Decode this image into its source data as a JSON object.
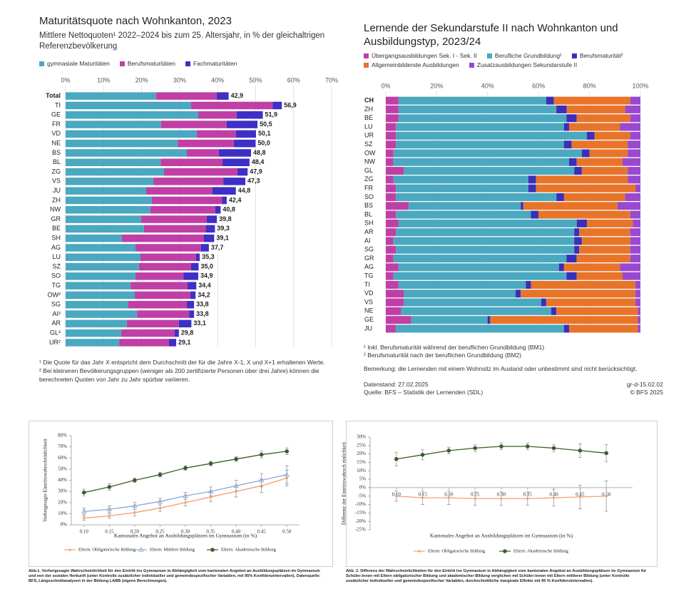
{
  "chart_data": [
    {
      "type": "bar",
      "orientation": "horizontal",
      "stacked": true,
      "title": "Maturitätsquote nach Wohnkanton, 2023",
      "subtitle": "Mittlere Nettoquoten¹ 2022–2024 bis zum 25. Altersjahr, in % der gleichaltrigen Referenzbevölkerung",
      "categories": [
        "Total",
        "TI",
        "GE",
        "FR",
        "VD",
        "NE",
        "BS",
        "BL",
        "ZG",
        "VS",
        "JU",
        "ZH",
        "NW",
        "GR",
        "BE",
        "SH",
        "AG",
        "LU",
        "SZ",
        "SO",
        "TG",
        "OW²",
        "SG",
        "AI²",
        "AR",
        "GL²",
        "UR²"
      ],
      "series": [
        {
          "name": "gymnasiale Maturitäten",
          "color": "#4aa8c0",
          "values": [
            23.8,
            33.0,
            34.9,
            25.1,
            34.5,
            29.5,
            31.9,
            25.0,
            25.9,
            23.1,
            21.2,
            22.7,
            22.3,
            19.9,
            20.6,
            14.8,
            18.4,
            19.7,
            19.3,
            18.4,
            17.1,
            18.2,
            16.5,
            18.8,
            16.1,
            14.6,
            14.1
          ]
        },
        {
          "name": "Berufsmaturitäten",
          "color": "#c03fa6",
          "values": [
            16.0,
            21.5,
            10.1,
            17.3,
            10.3,
            14.8,
            8.4,
            16.3,
            19.3,
            18.4,
            17.4,
            18.5,
            17.1,
            17.2,
            16.3,
            21.6,
            17.2,
            14.6,
            13.7,
            12.6,
            15.0,
            14.6,
            15.4,
            13.7,
            13.7,
            14.1,
            13.1
          ]
        },
        {
          "name": "Fachmaturitäten",
          "color": "#3e2fc6",
          "values": [
            3.1,
            2.4,
            6.9,
            8.1,
            5.3,
            5.7,
            8.5,
            7.1,
            2.7,
            5.8,
            6.2,
            1.2,
            1.4,
            2.7,
            2.4,
            2.7,
            2.1,
            1.0,
            2.0,
            3.9,
            2.3,
            1.4,
            1.9,
            1.3,
            3.3,
            1.1,
            1.9
          ]
        }
      ],
      "totals": [
        42.9,
        56.9,
        51.9,
        50.5,
        50.1,
        50.0,
        48.8,
        48.4,
        47.9,
        47.3,
        44.8,
        42.4,
        40.8,
        39.8,
        39.3,
        39.1,
        37.7,
        35.3,
        35.0,
        34.9,
        34.4,
        34.2,
        33.8,
        33.8,
        33.1,
        29.8,
        29.1
      ],
      "total_labels": [
        "42,9",
        "56,9",
        "51,9",
        "50,5",
        "50,1",
        "50,0",
        "48,8",
        "48,4",
        "47,9",
        "47,3",
        "44,8",
        "42,4",
        "40,8",
        "39,8",
        "39,3",
        "39,1",
        "37,7",
        "35,3",
        "35,0",
        "34,9",
        "34,4",
        "34,2",
        "33,8",
        "33,8",
        "33,1",
        "29,8",
        "29,1"
      ],
      "xlim": [
        0,
        70
      ],
      "xticks": [
        {
          "value": 0,
          "label": "0%"
        },
        {
          "value": 10,
          "label": "10%"
        },
        {
          "value": 20,
          "label": "20%"
        },
        {
          "value": 30,
          "label": "30%"
        },
        {
          "value": 40,
          "label": "40%"
        },
        {
          "value": 50,
          "label": "50%"
        },
        {
          "value": 60,
          "label": "60%"
        },
        {
          "value": 70,
          "label": "70%"
        }
      ],
      "grid": true,
      "notes": [
        "¹ Die Quote für das Jahr X entspricht dem Durchschnitt der für die Jahre X-1, X und X+1 erhaltenen Werte.",
        "² Bei kleineren Bevölkerungsgruppen (weniger als 200 zertifizierte Personen über drei Jahre) können die berechneten Quoten von Jahr zu Jahr spürbar variieren."
      ]
    },
    {
      "type": "bar",
      "orientation": "horizontal",
      "stacked": true,
      "title": "Lernende der Sekundarstufe II nach Wohnkanton und Ausbildungstyp, 2023/24",
      "categories": [
        "CH",
        "ZH",
        "BE",
        "LU",
        "UR",
        "SZ",
        "OW",
        "NW",
        "GL",
        "ZG",
        "FR",
        "SO",
        "BS",
        "BL",
        "SH",
        "AR",
        "AI",
        "SG",
        "GR",
        "AG",
        "TG",
        "TI",
        "VD",
        "VS",
        "NE",
        "GE",
        "JU"
      ],
      "series": [
        {
          "name": "Übergangsausbildungen Sek. I - Sek. II",
          "color": "#c03fa6",
          "values": [
            5,
            5,
            5,
            4,
            4,
            4,
            3,
            3,
            7,
            3,
            4,
            4,
            9,
            4,
            5,
            4,
            3,
            4,
            3,
            5,
            3,
            5,
            7,
            7,
            6,
            10,
            4
          ]
        },
        {
          "name": "Berufliche Grundbildung¹",
          "color": "#4aa8c0",
          "values": [
            58,
            62,
            66,
            66,
            75,
            66,
            74,
            69,
            67,
            53,
            52,
            63,
            44,
            53,
            70,
            70,
            71,
            70,
            68,
            63,
            68,
            50,
            44,
            54,
            59,
            30,
            66
          ]
        },
        {
          "name": "Berufsmaturität²",
          "color": "#3a2fb8",
          "values": [
            3,
            4,
            4,
            2,
            3,
            3,
            3,
            3,
            3,
            3,
            3,
            3,
            1,
            3,
            4,
            2,
            3,
            2,
            4,
            2,
            4,
            2,
            2,
            2,
            2,
            1,
            2
          ]
        },
        {
          "name": "Allgemeinbildende Ausbildungen",
          "color": "#e8742a",
          "values": [
            30,
            23,
            21,
            20,
            14,
            22,
            15,
            18,
            18,
            36,
            39,
            24,
            37,
            36,
            18,
            20,
            19,
            20,
            21,
            22,
            18,
            41,
            45,
            35,
            32,
            58,
            27
          ]
        },
        {
          "name": "Zusatzausbildungen Sekundarstufe II",
          "color": "#9a48d0",
          "values": [
            4,
            6,
            4,
            8,
            4,
            5,
            5,
            7,
            5,
            5,
            2,
            6,
            9,
            4,
            3,
            4,
            4,
            4,
            4,
            8,
            7,
            2,
            2,
            2,
            1,
            1,
            1
          ]
        }
      ],
      "xlim": [
        0,
        100
      ],
      "xticks": [
        {
          "value": 0,
          "label": "0%"
        },
        {
          "value": 20,
          "label": "20%"
        },
        {
          "value": 40,
          "label": "40%"
        },
        {
          "value": 60,
          "label": "60%"
        },
        {
          "value": 80,
          "label": "80%"
        },
        {
          "value": 100,
          "label": "100%"
        }
      ],
      "grid": true,
      "notes": [
        "¹ Inkl. Berufsmaturität während der beruflichen Grundbildung (BM1)",
        "² Berufsmaturität nach der beruflichen Grundbildung (BM2)",
        "Bemerkung: die Lernenden mit einem Wohnsitz im Ausland oder unbestimmt sind nicht berücksichtigt."
      ],
      "stand": "Datenstand: 27.02.2025",
      "code": "gr-d-15.02.02",
      "source": "Quelle: BFS – Statistik der Lernenden (SDL)",
      "copyright": "© BFS 2025"
    },
    {
      "type": "line",
      "x_label": "Kantonales Angebot an Ausbildungsplätzen im Gymnasium (in %)",
      "y_label": "Vorhergesagte Eintrittswahrscheinlichkeit",
      "x": [
        0.1,
        0.15,
        0.2,
        0.25,
        0.3,
        0.35,
        0.4,
        0.45,
        0.5
      ],
      "series": [
        {
          "name": "Eltern: Obligatorische Bildung",
          "color": "#f0a070",
          "marker": "dot",
          "values": [
            6,
            8,
            11,
            15,
            20,
            25,
            30,
            35,
            42
          ],
          "errors": [
            2,
            2,
            3,
            3,
            3,
            4,
            5,
            6,
            7
          ]
        },
        {
          "name": "Eltern: Mittlere Bildung",
          "color": "#8fa8d8",
          "marker": "triangle",
          "values": [
            12,
            14,
            17,
            21,
            26,
            30,
            35,
            40,
            45
          ],
          "errors": [
            3,
            3,
            3,
            3,
            3,
            4,
            5,
            6,
            8
          ]
        },
        {
          "name": "Eltern: Akademische Bildung",
          "color": "#3b5e2b",
          "marker": "circle",
          "values": [
            29,
            34,
            40,
            45,
            51,
            55,
            59,
            63,
            66
          ],
          "errors": [
            3,
            3,
            2,
            2,
            2,
            2,
            2,
            3,
            3
          ]
        }
      ],
      "xlim": [
        0.075,
        0.525
      ],
      "xticks": [
        {
          "value": 0.1,
          "label": "0.10"
        },
        0.15,
        {
          "value": 0.2,
          "label": "0.20"
        },
        0.25,
        {
          "value": 0.3,
          "label": "0.30"
        },
        0.35,
        {
          "value": 0.4,
          "label": "0.40"
        },
        0.45,
        {
          "value": 0.5,
          "label": "0.50"
        }
      ],
      "ylim": [
        0,
        80
      ],
      "yticks": [
        {
          "value": 0,
          "label": "0%"
        },
        {
          "value": 10,
          "label": "10%"
        },
        {
          "value": 20,
          "label": "20%"
        },
        {
          "value": 30,
          "label": "30%"
        },
        {
          "value": 40,
          "label": "40%"
        },
        {
          "value": 50,
          "label": "50%"
        },
        {
          "value": 60,
          "label": "60%"
        },
        {
          "value": 70,
          "label": "70%"
        },
        {
          "value": 80,
          "label": "80%"
        }
      ],
      "grid": false,
      "caption": "Abb.1. Vorhergesagte Wahrscheinlichkeit für den Eintritt ins Gymnasium in Abhängigkeit vom kantonalen Angebot an Ausbildungsplätzen im Gymnasium und von der sozialen Herkunft (unter Kontrolle zusätzlicher individueller und gemeindespezifischer Variablen, mit 95% Konfidenzintervallen). Datenquelle: BFS, Längsschnittanalysen in der Bildung LABB (eigene Berechnungen)."
    },
    {
      "type": "line",
      "x_label": "Kantonales Angebot an Ausbildungsplätzen im Gymnasium (in %)",
      "y_label": "Differenz der Eintrittswahrsch einlichkeit",
      "x": [
        0.1,
        0.15,
        0.2,
        0.25,
        0.3,
        0.35,
        0.4,
        0.45,
        0.5
      ],
      "series": [
        {
          "name": "Eltern: Obligatorische Bildung",
          "color": "#f0a070",
          "marker": "dot",
          "values": [
            -5,
            -6,
            -6,
            -6.5,
            -6.5,
            -6.5,
            -6,
            -5.5,
            -5
          ],
          "errors": [
            3,
            4,
            4,
            4,
            4,
            4,
            5,
            7,
            9
          ]
        },
        {
          "name": "Eltern: Akademische Bildung",
          "color": "#3b5e2b",
          "marker": "circle",
          "values": [
            17,
            19.5,
            22,
            23.5,
            24.5,
            24.5,
            23.5,
            22,
            20.5
          ],
          "errors": [
            4,
            3,
            2,
            2,
            2,
            2,
            2,
            4,
            5
          ]
        }
      ],
      "xlim": [
        0.05,
        0.55
      ],
      "xticks": [
        {
          "value": 0.1,
          "label": "0.10"
        },
        0.15,
        {
          "value": 0.2,
          "label": "0.20"
        },
        0.25,
        {
          "value": 0.3,
          "label": "0.30"
        },
        0.35,
        {
          "value": 0.4,
          "label": "0.40"
        },
        0.45,
        {
          "value": 0.5,
          "label": "0.50"
        }
      ],
      "ylim": [
        -25,
        30
      ],
      "yticks": [
        {
          "value": -25,
          "label": "-25%"
        },
        {
          "value": -20,
          "label": "-20%"
        },
        {
          "value": -15,
          "label": "-15%"
        },
        {
          "value": -10,
          "label": "-10%"
        },
        {
          "value": -5,
          "label": "-5%"
        },
        {
          "value": 0,
          "label": "0%"
        },
        {
          "value": 5,
          "label": "5%"
        },
        {
          "value": 10,
          "label": "10%"
        },
        {
          "value": 15,
          "label": "15%"
        },
        {
          "value": 20,
          "label": "20%"
        },
        {
          "value": 25,
          "label": "25%"
        },
        {
          "value": 30,
          "label": "30%"
        }
      ],
      "grid": false,
      "caption": "Abb. 2. Differenz der Wahrscheinlichkeiten für den Eintritt ins Gymnasium in Abhängigkeit vom kantonalen Angebot an Ausbildungsplätzen im Gymnasium für Schüler:innen mit Eltern obligatorischer Bildung und akademischer Bildung verglichen mit Schüler:innen mit Eltern mittlerer Bildung (unter Kontrolle zusätzlicher individueller und gemeindespezifischer Variablen, durchschnittliche marginale Effekte mit 95 % Konfidenzintervallen)."
    }
  ]
}
